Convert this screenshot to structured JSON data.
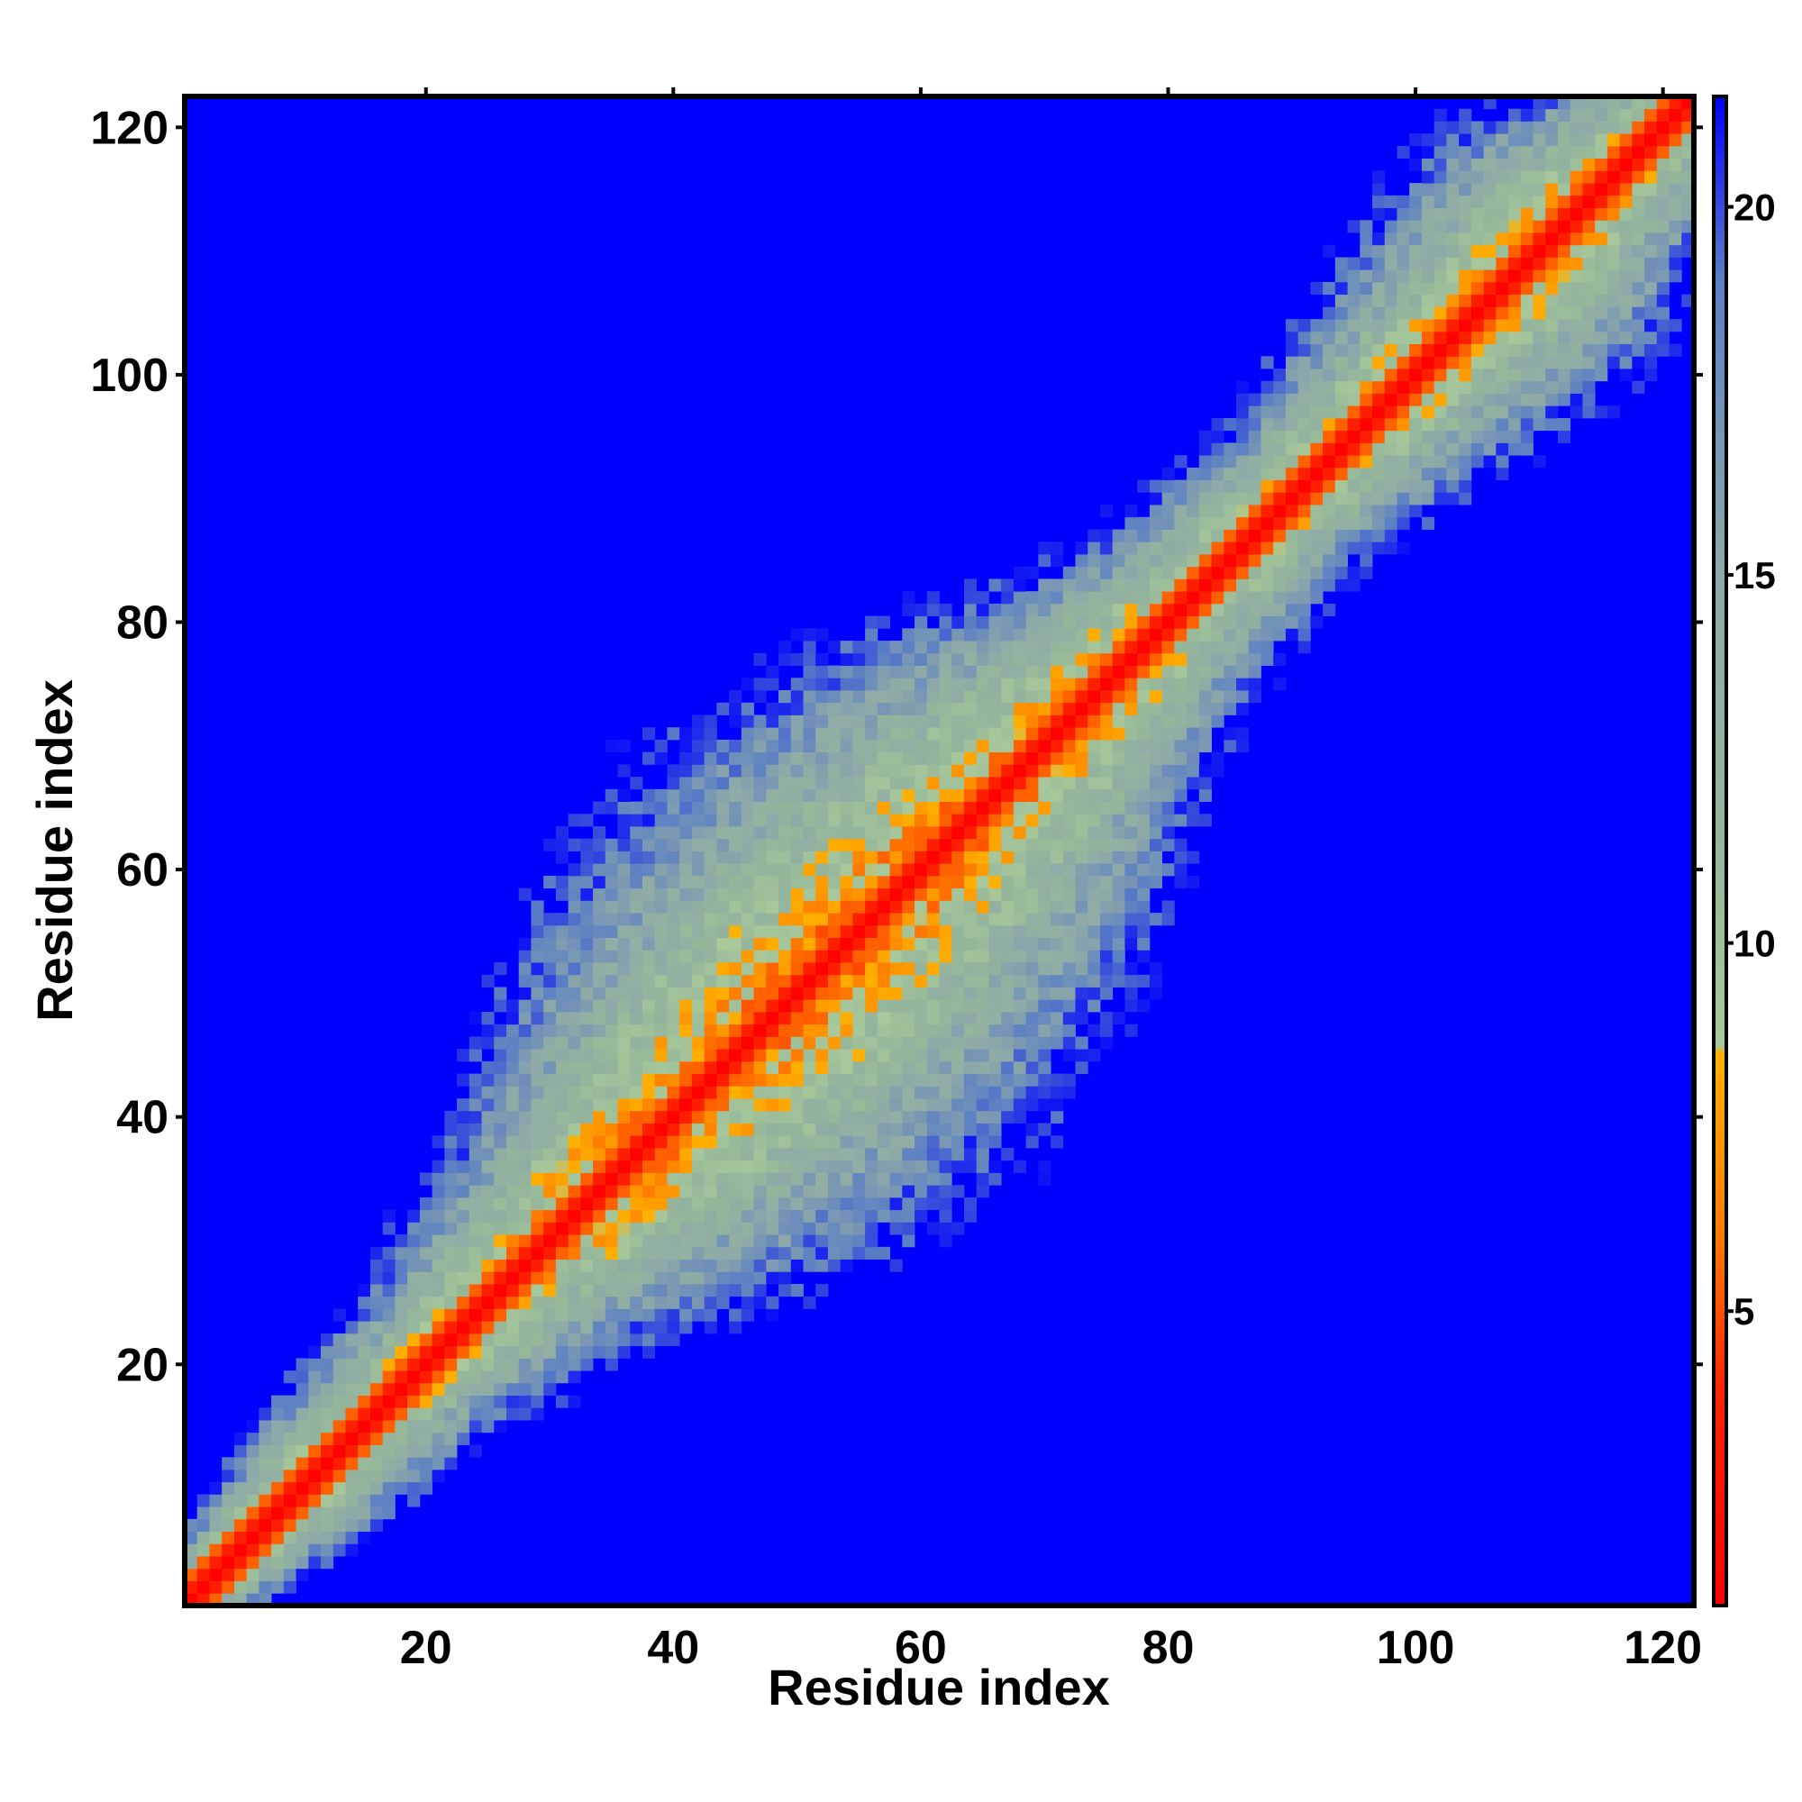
{
  "chart_data": {
    "type": "heatmap",
    "title": "",
    "xlabel": "Residue index",
    "ylabel": "Residue index",
    "xlim": [
      0.5,
      122.5
    ],
    "ylim": [
      0.5,
      122.5
    ],
    "xticks": [
      20,
      40,
      60,
      80,
      100,
      120
    ],
    "yticks": [
      20,
      40,
      60,
      80,
      100,
      120
    ],
    "n_residues": 122,
    "matrix_description": "Symmetric residue-residue distance map; cells beyond the colour range are drawn at the maximum (blue).",
    "band_profile": {
      "residues": [
        1,
        10,
        20,
        30,
        35,
        45,
        55,
        65,
        75,
        80,
        90,
        100,
        110,
        122
      ],
      "half_width": [
        3,
        5,
        6,
        9,
        12,
        16,
        17,
        14,
        9,
        7,
        6,
        8,
        10,
        5
      ]
    },
    "colorbar": {
      "min": 1,
      "max": 21.5,
      "ticks": [
        5,
        10,
        15,
        20
      ],
      "colors": [
        {
          "value": 1,
          "color": "#ff0000"
        },
        {
          "value": 4,
          "color": "#ff2400"
        },
        {
          "value": 6,
          "color": "#ff7a00"
        },
        {
          "value": 8.5,
          "color": "#ffb000"
        },
        {
          "value": 8.6,
          "color": "#a8c89a"
        },
        {
          "value": 11,
          "color": "#97b89a"
        },
        {
          "value": 15,
          "color": "#8ea9a8"
        },
        {
          "value": 19,
          "color": "#5b7fc4"
        },
        {
          "value": 21.5,
          "color": "#0000ff"
        }
      ]
    },
    "background_color": "#0000ff",
    "grid": false,
    "legend": "colorbar-right"
  }
}
